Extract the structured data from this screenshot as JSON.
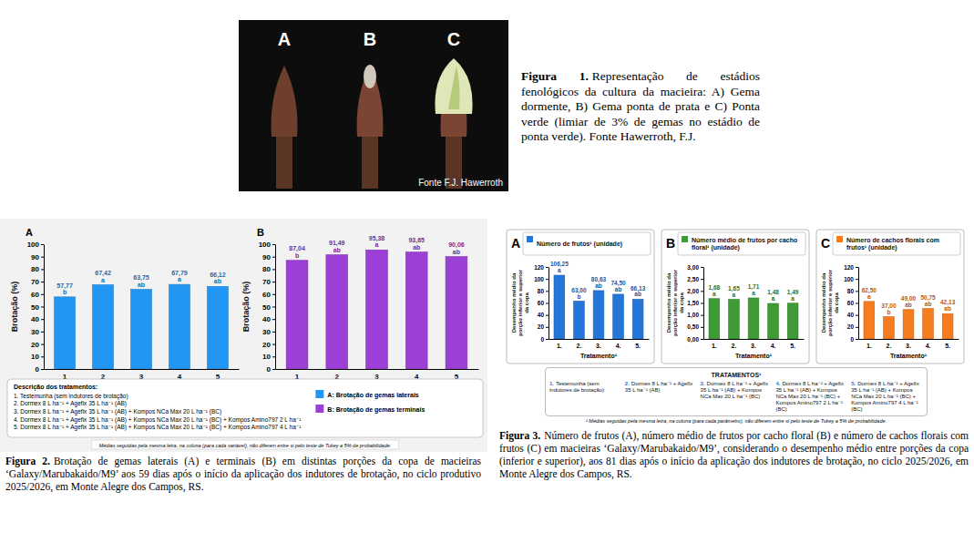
{
  "figure1": {
    "photo_labels": [
      "A",
      "B",
      "C"
    ],
    "photo_credit": "Fonte F.J. Hawerroth",
    "caption_label": "Figura 1.",
    "caption": "Representação de estádios fenológicos da cultura da macieira: A) Gema dormente, B) Gema ponta de prata e C) Ponta verde (limiar de 3% de gemas no estádio de ponta verde). Fonte Hawerroth, F.J."
  },
  "figure2": {
    "treatments_title": "Descrição dos tratamentos:",
    "treatments": [
      "1. Testemunha (sem indutores de brotação)",
      "2. Dormex 8 L ha⁻¹ + Agefix 35 L ha⁻¹ (AB)",
      "3. Dormex 8 L ha⁻¹ + Agefix 35 L ha⁻¹ (AB) + Kompos NCa Max 20 L ha⁻¹ (BC)",
      "4. Dormex 8 L ha⁻¹ + Agefix 35 L ha⁻¹ (AB) + Kompos NCa Max 20 L ha⁻¹ (BC) + Kompos Amino797 2 L ha⁻¹",
      "5. Dormex 8 L ha⁻¹ + Agefix 35 L ha⁻¹ (AB) + Kompos NCa Max 20 L ha⁻¹ (BC) + Kompos Amino797 4 L ha⁻¹"
    ],
    "footnote": "Médias seguidas pela mesma letra, na coluna (para cada variável), não diferem entre si pelo teste de Tukey a 5% de probabilidade.",
    "caption_label": "Figura 2.",
    "caption": "Brotação de gemas laterais (A) e terminais (B) em distintas porções da copa de macieiras ‘Galaxy/Marubakaido/M9’ aos 59 dias após o início da aplicação dos indutores de brotação, no ciclo produtivo 2025/2026, em Monte Alegre dos Campos, RS."
  },
  "figure3": {
    "treatments_title": "TRATAMENTOS¹",
    "treatments": [
      {
        "number": "1.",
        "text": "Testemunha (sem indutores de brotação)"
      },
      {
        "number": "2.",
        "text": "Dormex 8 L ha⁻¹ + Agefix 35 L ha⁻¹ (AB)"
      },
      {
        "number": "3.",
        "text": "Dormex 8 L ha⁻¹ + Agefix 35 L ha⁻¹ (AB) + Kompos NCa Max 20 L ha⁻¹ (BC)"
      },
      {
        "number": "4.",
        "text": "Dormex 8 L ha⁻¹ + Agefix 35 L ha⁻¹ (AB) + Kompos NCa Max 20 L ha⁻¹ (BC) + Kompos Amino797 2 L ha⁻¹ (BC)"
      },
      {
        "number": "5.",
        "text": "Dormex 8 L ha⁻¹ + Agefix 35 L ha⁻¹ (AB) + Kompos NCa Max 20 L ha⁻¹ (BC) + Kompos Amino797 4 L ha⁻¹ (BC)"
      }
    ],
    "footnote": "¹ Médias seguidas pela mesma letra, na coluna (para cada parâmetro), não diferem entre si pelo teste de Tukey a 5% de probabilidade.",
    "caption_label": "Figura 3.",
    "caption": "Número de frutos (A), número médio de frutos por cacho floral (B) e número de cachos florais com frutos (C) em macieiras ‘Galaxy/Marubakaido/M9’, considerando o desempenho médio entre porções da copa (inferior e superior), aos 81 dias após o início da aplicação dos indutores de brotação, no ciclo 2025/2026, em Monte Alegre dos Campos, RS."
  },
  "chart_data": [
    {
      "type": "bar",
      "panel": "A",
      "ylabel": "Brotação (%)",
      "categories": [
        "1",
        "2",
        "3",
        "4",
        "5"
      ],
      "series": [
        {
          "name": "A: Brotação de gemas laterais",
          "color": "#2196f3",
          "values": [
            57.77,
            67.42,
            63.75,
            67.79,
            66.12
          ],
          "value_labels": [
            "57,77",
            "67,42",
            "63,75",
            "67,79",
            "66,12"
          ],
          "letters": [
            "b",
            "a",
            "ab",
            "a",
            "ab"
          ]
        }
      ],
      "ylim": [
        0,
        100
      ],
      "yticks": [
        0,
        10,
        20,
        30,
        40,
        50,
        60,
        70,
        80,
        90,
        100
      ],
      "grid": false,
      "data_labels": true,
      "legend": "bottom"
    },
    {
      "type": "bar",
      "panel": "B",
      "ylabel": "Brotação (%)",
      "categories": [
        "1",
        "2",
        "3",
        "4",
        "5"
      ],
      "series": [
        {
          "name": "B: Brotação de gemas terminais",
          "color": "#9c3fd6",
          "values": [
            87.04,
            91.49,
            95.38,
            93.65,
            90.06
          ],
          "value_labels": [
            "87,04",
            "91,49",
            "95,38",
            "93,65",
            "90,06"
          ],
          "letters": [
            "b",
            "ab",
            "a",
            "ab",
            "ab"
          ]
        }
      ],
      "ylim": [
        0,
        100
      ],
      "yticks": [
        0,
        10,
        20,
        30,
        40,
        50,
        60,
        70,
        80,
        90,
        100
      ],
      "grid": false,
      "data_labels": true,
      "legend": "bottom"
    },
    {
      "type": "bar",
      "panel": "A",
      "title": "Número de frutos¹ (unidade)",
      "ylabel": "Desempenho médio da porção inferior e superior da copa",
      "xlabel": "Tratamento¹",
      "categories": [
        "1.",
        "2.",
        "3.",
        "4.",
        "5."
      ],
      "series": [
        {
          "color": "#2476d8",
          "values": [
            106.25,
            63,
            80.63,
            74.5,
            66.13
          ],
          "value_labels": [
            "106,25",
            "63,00",
            "80,63",
            "74,50",
            "66,13"
          ],
          "letters": [
            "a",
            "b",
            "ab",
            "ab",
            "ab"
          ]
        }
      ],
      "ylim": [
        0,
        120
      ],
      "yticks": [
        0,
        20,
        40,
        60,
        80,
        100,
        120
      ],
      "grid": false,
      "data_labels": true
    },
    {
      "type": "bar",
      "panel": "B",
      "title": "Número médio de frutos por cacho floral¹ (unidade)",
      "ylabel": "Desempenho médio da porção inferior e superior da copa",
      "xlabel": "Tratamento¹",
      "categories": [
        "1.",
        "2.",
        "3.",
        "4.",
        "5."
      ],
      "series": [
        {
          "color": "#3f9b35",
          "values": [
            1.68,
            1.65,
            1.71,
            1.48,
            1.49
          ],
          "value_labels": [
            "1,68",
            "1,65",
            "1,71",
            "1,48",
            "1,49"
          ],
          "letters": [
            "a",
            "a",
            "a",
            "a",
            "a"
          ]
        }
      ],
      "ylim": [
        0,
        3
      ],
      "yticks": [
        {
          "value": 0,
          "label": "0,00"
        },
        {
          "value": 0.5,
          "label": "0,50"
        },
        {
          "value": 1,
          "label": "1,00"
        },
        {
          "value": 1.5,
          "label": "1,50"
        },
        {
          "value": 2,
          "label": "2,00"
        },
        {
          "value": 2.5,
          "label": "2,50"
        },
        {
          "value": 3,
          "label": "3,00"
        }
      ],
      "grid": false,
      "data_labels": true
    },
    {
      "type": "bar",
      "panel": "C",
      "title": "Número de cachos florais com frutos¹ (unidade)",
      "ylabel": "Desempenho médio da porção inferior e superior da copa",
      "xlabel": "Tratamento¹",
      "categories": [
        "1.",
        "2.",
        "3.",
        "4.",
        "5."
      ],
      "series": [
        {
          "color": "#f57c1f",
          "values": [
            62.5,
            37,
            49,
            50.75,
            42.13
          ],
          "value_labels": [
            "62,50",
            "37,00",
            "49,00",
            "50,75",
            "42,13"
          ],
          "letters": [
            "a",
            "b",
            "ab",
            "ab",
            "ab"
          ]
        }
      ],
      "ylim": [
        0,
        120
      ],
      "yticks": [
        0,
        20,
        40,
        60,
        80,
        100,
        120
      ],
      "grid": false,
      "data_labels": true
    }
  ]
}
